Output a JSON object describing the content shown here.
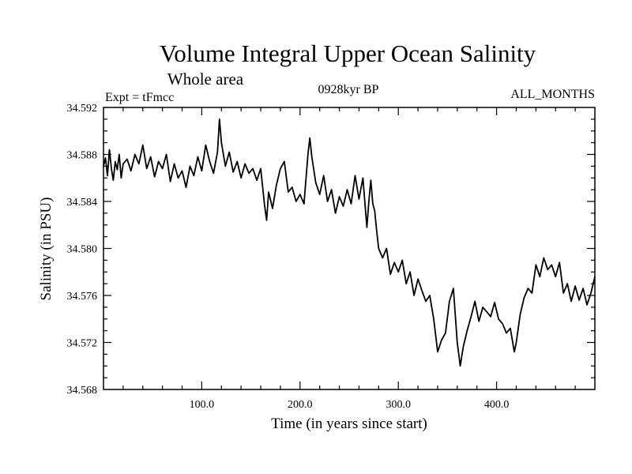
{
  "chart_data": {
    "type": "line",
    "title": "Volume Integral Upper Ocean Salinity",
    "subtitle": "Whole area",
    "expt_label": "Expt = tFmcc",
    "period_label": "0928kyr BP",
    "months_label": "ALL_MONTHS",
    "xlabel": "Time (in years since start)",
    "ylabel": "Salinity (in PSU)",
    "xlim": [
      0,
      500
    ],
    "ylim": [
      34.568,
      34.592
    ],
    "xticks": [
      100,
      200,
      300,
      400
    ],
    "xtick_labels": [
      "100.0",
      "200.0",
      "300.0",
      "400.0"
    ],
    "yticks": [
      34.568,
      34.572,
      34.576,
      34.58,
      34.584,
      34.588,
      34.592
    ],
    "ytick_labels": [
      "34.568",
      "34.572",
      "34.576",
      "34.580",
      "34.584",
      "34.588",
      "34.592"
    ],
    "grid": false,
    "series": [
      {
        "name": "Salinity",
        "x": [
          0,
          2,
          4,
          6,
          8,
          10,
          12,
          14,
          16,
          18,
          20,
          24,
          28,
          32,
          36,
          40,
          44,
          48,
          52,
          56,
          60,
          64,
          68,
          72,
          76,
          80,
          84,
          88,
          92,
          96,
          100,
          104,
          108,
          112,
          116,
          118,
          120,
          124,
          128,
          132,
          136,
          140,
          144,
          148,
          152,
          156,
          160,
          164,
          166,
          168,
          172,
          176,
          180,
          184,
          188,
          192,
          196,
          200,
          204,
          208,
          210,
          212,
          216,
          220,
          224,
          228,
          232,
          236,
          240,
          244,
          248,
          252,
          256,
          260,
          264,
          268,
          270,
          272,
          274,
          276,
          278,
          280,
          284,
          288,
          292,
          296,
          300,
          304,
          308,
          312,
          316,
          320,
          324,
          328,
          332,
          336,
          340,
          344,
          348,
          352,
          356,
          360,
          363,
          366,
          370,
          374,
          378,
          382,
          386,
          390,
          394,
          398,
          402,
          406,
          410,
          414,
          418,
          420,
          424,
          428,
          432,
          436,
          440,
          444,
          448,
          452,
          456,
          460,
          464,
          468,
          472,
          476,
          480,
          484,
          488,
          492,
          496,
          500
        ],
        "values": [
          34.587,
          34.5877,
          34.5862,
          34.5884,
          34.5868,
          34.5858,
          34.5874,
          34.5867,
          34.588,
          34.586,
          34.5872,
          34.5876,
          34.5866,
          34.588,
          34.5872,
          34.5888,
          34.5868,
          34.5878,
          34.5861,
          34.5874,
          34.5868,
          34.588,
          34.5857,
          34.5872,
          34.586,
          34.5866,
          34.5852,
          34.587,
          34.5862,
          34.5878,
          34.5866,
          34.5888,
          34.5874,
          34.5864,
          34.5882,
          34.591,
          34.589,
          34.587,
          34.5882,
          34.5865,
          34.5874,
          34.586,
          34.5872,
          34.5864,
          34.5868,
          34.5858,
          34.5868,
          34.5836,
          34.5824,
          34.5848,
          34.5834,
          34.5854,
          34.5868,
          34.5874,
          34.5848,
          34.5852,
          34.584,
          34.5846,
          34.5838,
          34.588,
          34.5894,
          34.5878,
          34.5856,
          34.5846,
          34.5862,
          34.584,
          34.585,
          34.583,
          34.5844,
          34.5836,
          34.585,
          34.5838,
          34.5862,
          34.5842,
          34.586,
          34.5818,
          34.584,
          34.5858,
          34.5838,
          34.5832,
          34.5815,
          34.58,
          34.5792,
          34.58,
          34.5778,
          34.5788,
          34.578,
          34.579,
          34.577,
          34.578,
          34.576,
          34.5774,
          34.5764,
          34.5755,
          34.576,
          34.574,
          34.5712,
          34.5722,
          34.5728,
          34.5755,
          34.5766,
          34.572,
          34.57,
          34.5716,
          34.573,
          34.5742,
          34.5755,
          34.5738,
          34.575,
          34.5746,
          34.5742,
          34.5754,
          34.574,
          34.5736,
          34.5728,
          34.5732,
          34.5712,
          34.572,
          34.5744,
          34.5758,
          34.5766,
          34.5762,
          34.5786,
          34.5776,
          34.5792,
          34.5782,
          34.5786,
          34.5776,
          34.5788,
          34.5762,
          34.577,
          34.5755,
          34.5768,
          34.5756,
          34.5766,
          34.5752,
          34.5762,
          34.5776
        ]
      }
    ]
  }
}
